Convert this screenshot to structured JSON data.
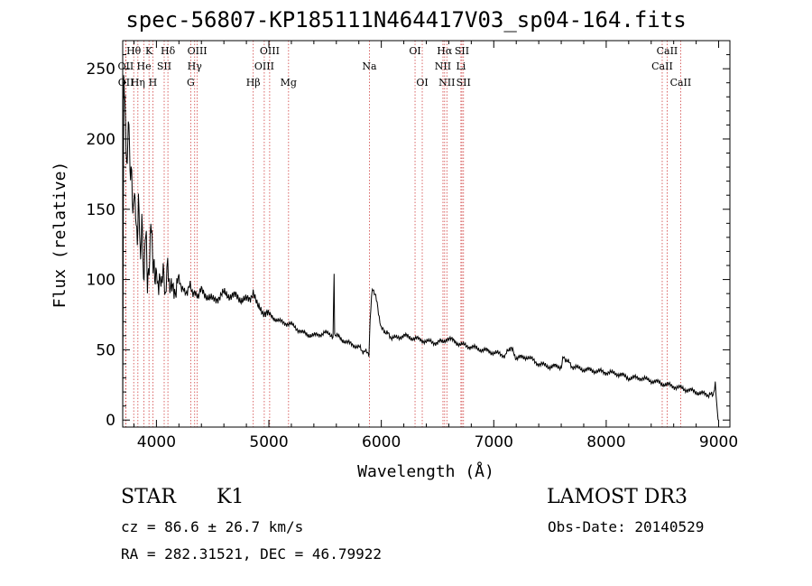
{
  "title": "spec-56807-KP185111N464417V03_sp04-164.fits",
  "info": {
    "object_class": "STAR",
    "subclass": "K1",
    "survey": "LAMOST DR3",
    "cz_label": "cz = 86.6 ± 26.7 km/s",
    "obs_date": "Obs-Date: 20140529",
    "coords": "RA = 282.31521, DEC =  46.79922"
  },
  "colors": {
    "line": "#000000",
    "marker": "#d04040"
  },
  "chart_data": {
    "type": "line",
    "title": "spec-56807-KP185111N464417V03_sp04-164.fits",
    "xlabel": "Wavelength (Å)",
    "ylabel": "Flux (relative)",
    "xlim": [
      3700,
      9100
    ],
    "ylim": [
      -5,
      270
    ],
    "xticks": [
      4000,
      5000,
      6000,
      7000,
      8000,
      9000
    ],
    "yticks": [
      0,
      50,
      100,
      150,
      200,
      250
    ],
    "series": [
      {
        "name": "flux",
        "x": [
          3700,
          3710,
          3720,
          3730,
          3740,
          3750,
          3760,
          3770,
          3780,
          3790,
          3800,
          3810,
          3820,
          3830,
          3840,
          3850,
          3860,
          3870,
          3880,
          3890,
          3900,
          3910,
          3920,
          3930,
          3940,
          3950,
          3960,
          3970,
          3980,
          3990,
          4000,
          4020,
          4040,
          4060,
          4080,
          4100,
          4120,
          4150,
          4200,
          4250,
          4300,
          4350,
          4400,
          4500,
          4600,
          4700,
          4800,
          4860,
          4900,
          5000,
          5100,
          5200,
          5300,
          5400,
          5500,
          5570,
          5580,
          5585,
          5590,
          5600,
          5700,
          5800,
          5850,
          5870,
          5890,
          5900,
          5920,
          5950,
          6000,
          6050,
          6100,
          6200,
          6300,
          6400,
          6500,
          6560,
          6600,
          6700,
          6800,
          6900,
          7000,
          7100,
          7150,
          7200,
          7300,
          7400,
          7500,
          7600,
          7620,
          7700,
          7800,
          7900,
          8000,
          8100,
          8200,
          8300,
          8400,
          8500,
          8600,
          8700,
          8800,
          8900,
          8950,
          8970,
          8990,
          9000
        ],
        "y": [
          0,
          240,
          225,
          200,
          180,
          215,
          190,
          170,
          185,
          145,
          160,
          150,
          140,
          130,
          160,
          135,
          105,
          150,
          120,
          100,
          130,
          125,
          95,
          110,
          115,
          140,
          125,
          110,
          115,
          100,
          105,
          95,
          100,
          105,
          90,
          110,
          95,
          90,
          100,
          90,
          95,
          88,
          92,
          85,
          90,
          88,
          85,
          90,
          80,
          75,
          70,
          68,
          62,
          60,
          62,
          60,
          105,
          62,
          58,
          60,
          55,
          52,
          48,
          50,
          45,
          70,
          95,
          88,
          65,
          62,
          58,
          60,
          58,
          56,
          55,
          57,
          58,
          54,
          52,
          50,
          48,
          46,
          52,
          44,
          45,
          40,
          38,
          38,
          45,
          38,
          36,
          35,
          34,
          33,
          30,
          30,
          28,
          26,
          24,
          22,
          20,
          18,
          18,
          25,
          5,
          0
        ]
      }
    ],
    "lines": [
      {
        "label": "Hθ",
        "x": 3798,
        "row": 1
      },
      {
        "label": "OII",
        "x": 3727,
        "row": 2
      },
      {
        "label": "OII",
        "x": 3729,
        "row": 3
      },
      {
        "label": "Hη",
        "x": 3835,
        "row": 3
      },
      {
        "label": "He",
        "x": 3889,
        "row": 2
      },
      {
        "label": "K",
        "x": 3934,
        "row": 1
      },
      {
        "label": "H",
        "x": 3968,
        "row": 3
      },
      {
        "label": "SII",
        "x": 4069,
        "row": 2
      },
      {
        "label": "Hδ",
        "x": 4102,
        "row": 1
      },
      {
        "label": "G",
        "x": 4305,
        "row": 3
      },
      {
        "label": "Hγ",
        "x": 4340,
        "row": 2
      },
      {
        "label": "OIII",
        "x": 4363,
        "row": 1
      },
      {
        "label": "Hβ",
        "x": 4861,
        "row": 3
      },
      {
        "label": "OIII",
        "x": 4959,
        "row": 2
      },
      {
        "label": "OIII",
        "x": 5007,
        "row": 1
      },
      {
        "label": "Mg",
        "x": 5175,
        "row": 3
      },
      {
        "label": "Na",
        "x": 5894,
        "row": 2
      },
      {
        "label": "OI",
        "x": 6300,
        "row": 1
      },
      {
        "label": "OI",
        "x": 6364,
        "row": 3
      },
      {
        "label": "NII",
        "x": 6548,
        "row": 2
      },
      {
        "label": "Hα",
        "x": 6563,
        "row": 1
      },
      {
        "label": "NII",
        "x": 6583,
        "row": 3
      },
      {
        "label": "Li",
        "x": 6708,
        "row": 2
      },
      {
        "label": "SII",
        "x": 6717,
        "row": 1
      },
      {
        "label": "SII",
        "x": 6731,
        "row": 3
      },
      {
        "label": "CaII",
        "x": 8498,
        "row": 2
      },
      {
        "label": "CaII",
        "x": 8542,
        "row": 1
      },
      {
        "label": "CaII",
        "x": 8662,
        "row": 3
      }
    ]
  }
}
